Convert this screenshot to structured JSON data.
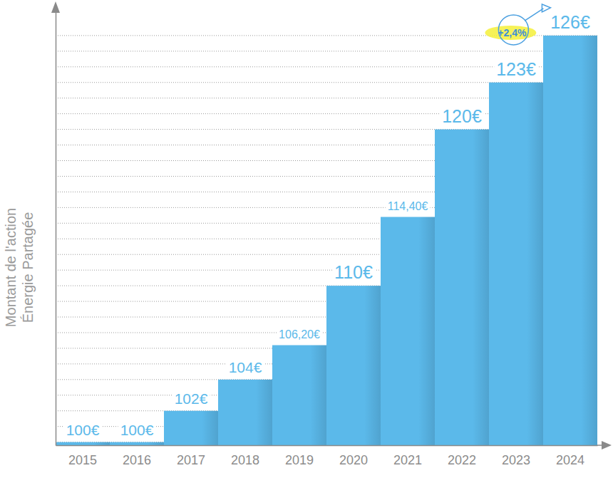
{
  "chart_data": {
    "type": "bar",
    "y_label": "Montant de l'action\nÉnergie Partagée",
    "categories": [
      "2015",
      "2016",
      "2017",
      "2018",
      "2019",
      "2020",
      "2021",
      "2022",
      "2023",
      "2024"
    ],
    "values": [
      100,
      100,
      102,
      104,
      106.2,
      110,
      114.4,
      120,
      123,
      126
    ],
    "value_labels": [
      "100€",
      "100€",
      "102€",
      "104€",
      "106,20€",
      "110€",
      "114,40€",
      "120€",
      "123€",
      "126€"
    ],
    "color": "#5bb9ea",
    "ylim": [
      99.8,
      128
    ],
    "yticks": [
      100,
      101,
      102,
      103,
      104,
      105,
      106,
      107,
      108,
      109,
      110,
      111,
      112,
      113,
      114,
      115,
      116,
      117,
      118,
      119,
      120,
      121,
      122,
      123,
      124,
      125,
      126
    ],
    "grid": true,
    "data_labels": true,
    "tick_labels": "x",
    "annotations": [
      "+2,4%"
    ]
  }
}
